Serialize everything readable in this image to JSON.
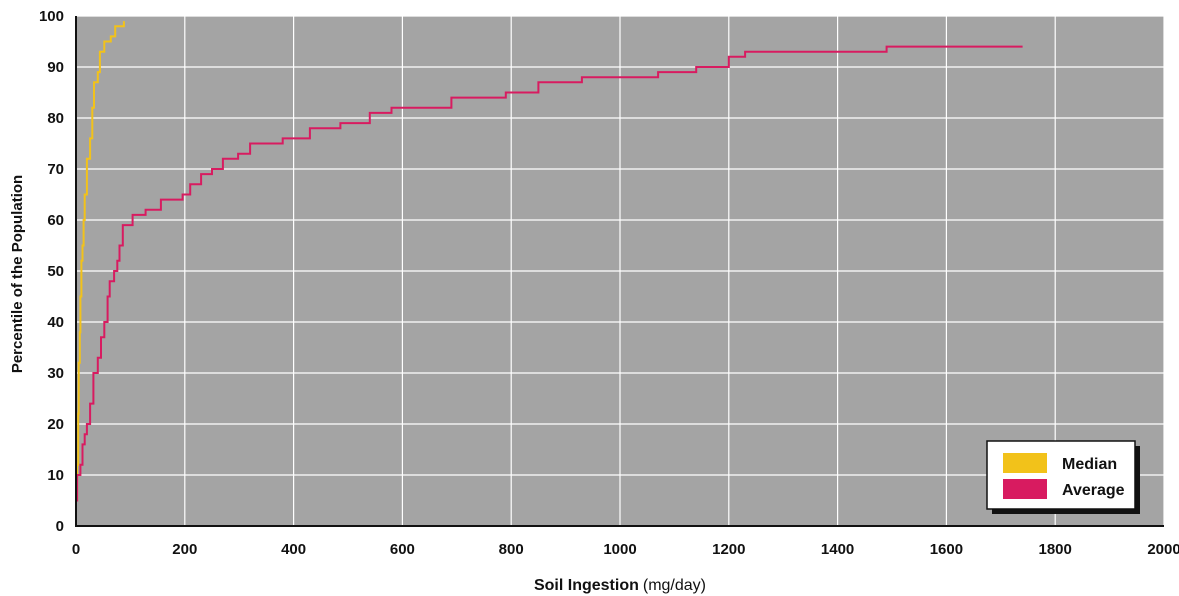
{
  "chart_data": {
    "type": "line",
    "line_style": "step",
    "xlabel": "Soil Ingestion",
    "xlabel_unit": "(mg/day)",
    "ylabel": "Percentile of the Population",
    "xlim": [
      0,
      2000
    ],
    "ylim": [
      0,
      100
    ],
    "x_ticks": [
      0,
      200,
      400,
      600,
      800,
      1000,
      1200,
      1400,
      1600,
      1800,
      2000
    ],
    "y_ticks": [
      0,
      10,
      20,
      30,
      40,
      50,
      60,
      70,
      80,
      90,
      100
    ],
    "grid": true,
    "legend_position": "bottom-right",
    "series": [
      {
        "name": "Median",
        "color": "#f2c21a",
        "points": [
          [
            0,
            5
          ],
          [
            2,
            12
          ],
          [
            4,
            22
          ],
          [
            5,
            32
          ],
          [
            7,
            38
          ],
          [
            8,
            45
          ],
          [
            10,
            52
          ],
          [
            12,
            55
          ],
          [
            14,
            60
          ],
          [
            16,
            65
          ],
          [
            20,
            72
          ],
          [
            26,
            76
          ],
          [
            30,
            82
          ],
          [
            33,
            87
          ],
          [
            40,
            89
          ],
          [
            44,
            93
          ],
          [
            52,
            95
          ],
          [
            64,
            96
          ],
          [
            72,
            98
          ],
          [
            88,
            99
          ]
        ]
      },
      {
        "name": "Average",
        "color": "#d81b60",
        "points": [
          [
            0,
            5
          ],
          [
            2,
            10
          ],
          [
            8,
            12
          ],
          [
            12,
            16
          ],
          [
            16,
            18
          ],
          [
            20,
            20
          ],
          [
            26,
            24
          ],
          [
            32,
            30
          ],
          [
            40,
            33
          ],
          [
            46,
            37
          ],
          [
            52,
            40
          ],
          [
            58,
            45
          ],
          [
            62,
            48
          ],
          [
            70,
            50
          ],
          [
            76,
            52
          ],
          [
            80,
            55
          ],
          [
            86,
            59
          ],
          [
            104,
            61
          ],
          [
            128,
            62
          ],
          [
            156,
            64
          ],
          [
            196,
            65
          ],
          [
            210,
            67
          ],
          [
            230,
            69
          ],
          [
            250,
            70
          ],
          [
            270,
            72
          ],
          [
            298,
            73
          ],
          [
            320,
            75
          ],
          [
            380,
            76
          ],
          [
            430,
            78
          ],
          [
            486,
            79
          ],
          [
            540,
            81
          ],
          [
            580,
            82
          ],
          [
            690,
            84
          ],
          [
            790,
            85
          ],
          [
            850,
            87
          ],
          [
            930,
            88
          ],
          [
            1070,
            89
          ],
          [
            1140,
            90
          ],
          [
            1200,
            92
          ],
          [
            1230,
            93
          ],
          [
            1490,
            94
          ],
          [
            1740,
            94
          ]
        ]
      }
    ]
  }
}
